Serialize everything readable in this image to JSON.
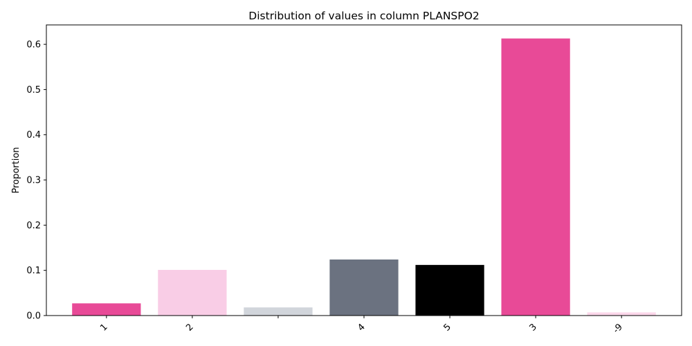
{
  "chart_data": {
    "type": "bar",
    "title": "Distribution of values in column PLANSPO2",
    "xlabel": "",
    "ylabel": "Proportion",
    "categories": [
      "1",
      "2",
      "",
      "4",
      "5",
      "3",
      "-9"
    ],
    "values": [
      0.027,
      0.101,
      0.018,
      0.124,
      0.112,
      0.613,
      0.007
    ],
    "colors": [
      "#e84a97",
      "#f9cde6",
      "#d1d5db",
      "#6b7280",
      "#000000",
      "#e84a97",
      "#fbd7ea"
    ],
    "ylim": [
      0,
      0.643
    ],
    "yticks": [
      "0.0",
      "0.1",
      "0.2",
      "0.3",
      "0.4",
      "0.5",
      "0.6"
    ],
    "grid": false,
    "legend": "none"
  }
}
